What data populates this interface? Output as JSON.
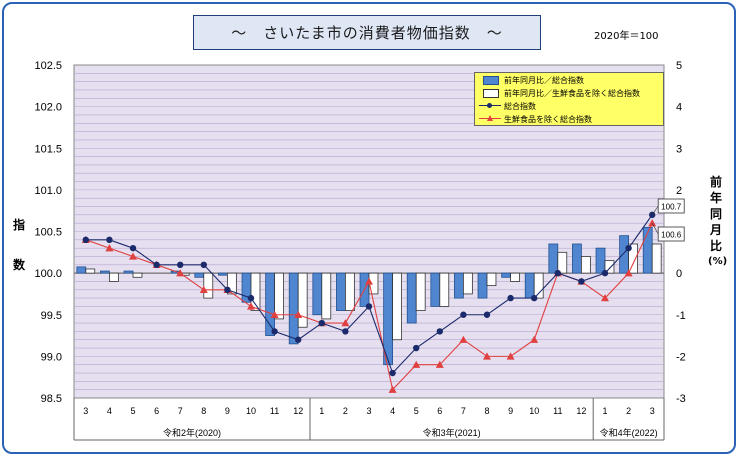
{
  "header": {
    "title": "～　さいたま市の消費者物価指数　～",
    "base_note": "2020年＝100"
  },
  "axis_labels": {
    "left": "指数",
    "right": [
      "前",
      "年",
      "同",
      "月",
      "比",
      "(%)"
    ]
  },
  "legend": {
    "items": [
      {
        "label": "前年同月比／総合指数",
        "key": "total_yoy"
      },
      {
        "label": "前年同月比／生鮮食品を除く総合指数",
        "key": "core_yoy"
      },
      {
        "label": "総合指数",
        "key": "total_index"
      },
      {
        "label": "生鮮食品を除く総合指数",
        "key": "core_index"
      }
    ]
  },
  "colors": {
    "plot_bg": "#e6dff0",
    "grid": "#b7a6cc",
    "bar_total": "#4f86cf",
    "bar_total_border": "#24508f",
    "bar_core": "#ffffff",
    "line_total": "#1b2a6b",
    "line_core": "#e04040"
  },
  "chart_data": {
    "type": "bar+line",
    "categories": [
      "3",
      "4",
      "5",
      "6",
      "7",
      "8",
      "9",
      "10",
      "11",
      "12",
      "1",
      "2",
      "3",
      "4",
      "5",
      "6",
      "7",
      "8",
      "9",
      "10",
      "11",
      "12",
      "1",
      "2",
      "3"
    ],
    "groups": [
      {
        "label": "令和2年(2020)",
        "start": 0,
        "end": 9
      },
      {
        "label": "令和3年(2021)",
        "start": 10,
        "end": 21
      },
      {
        "label": "令和4年(2022)",
        "start": 22,
        "end": 24
      }
    ],
    "left_axis": {
      "min": 98.5,
      "max": 102.5,
      "step": 0.5,
      "ticks": [
        "98.5",
        "99.0",
        "99.5",
        "100.0",
        "100.5",
        "101.0",
        "101.5",
        "102.0",
        "102.5"
      ]
    },
    "right_axis": {
      "min": -3,
      "max": 5,
      "step": 1,
      "ticks": [
        "-3",
        "-2",
        "-1",
        "0",
        "1",
        "2",
        "3",
        "4",
        "5"
      ]
    },
    "series": [
      {
        "name": "前年同月比／総合指数",
        "type": "bar",
        "axis": "right",
        "values": [
          0.15,
          0.05,
          0.05,
          0.0,
          0.05,
          -0.1,
          -0.05,
          -0.7,
          -1.5,
          -1.7,
          -1.0,
          -0.9,
          -0.8,
          -2.2,
          -1.2,
          -0.8,
          -0.6,
          -0.6,
          -0.1,
          -0.6,
          0.7,
          0.7,
          0.6,
          0.9,
          1.1
        ]
      },
      {
        "name": "前年同月比／生鮮食品を除く総合指数",
        "type": "bar",
        "axis": "right",
        "values": [
          0.1,
          -0.2,
          -0.1,
          0.0,
          -0.05,
          -0.6,
          -0.5,
          -0.9,
          -1.1,
          -1.3,
          -1.1,
          -0.9,
          -0.5,
          -1.6,
          -0.9,
          -0.8,
          -0.5,
          -0.3,
          -0.2,
          -0.6,
          0.5,
          0.4,
          0.3,
          0.7,
          0.7
        ]
      },
      {
        "name": "総合指数",
        "type": "line",
        "axis": "left",
        "values": [
          100.4,
          100.4,
          100.3,
          100.1,
          100.1,
          100.1,
          99.8,
          99.7,
          99.3,
          99.2,
          99.4,
          99.3,
          99.6,
          98.8,
          99.1,
          99.3,
          99.5,
          99.5,
          99.7,
          99.7,
          100.0,
          99.9,
          100.0,
          100.3,
          100.7
        ]
      },
      {
        "name": "生鮮食品を除く総合指数",
        "type": "line",
        "axis": "left",
        "values": [
          100.4,
          100.3,
          100.2,
          100.1,
          100.0,
          99.8,
          99.8,
          99.6,
          99.5,
          99.5,
          99.4,
          99.4,
          99.9,
          98.6,
          98.9,
          98.9,
          99.2,
          99.0,
          99.0,
          99.2,
          100.0,
          99.9,
          99.7,
          100.0,
          100.6
        ]
      }
    ],
    "annotations": [
      {
        "series": "総合指数",
        "index": 24,
        "text": "100.7"
      },
      {
        "series": "生鮮食品を除く総合指数",
        "index": 24,
        "text": "100.6"
      }
    ],
    "grid": true,
    "legend_position": "top-right"
  }
}
